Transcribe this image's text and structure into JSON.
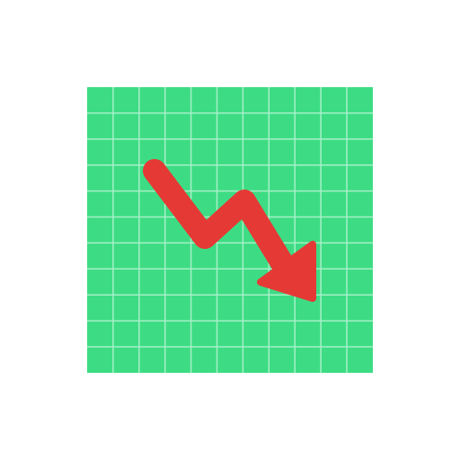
{
  "icon": {
    "name": "chart-decreasing-icon",
    "colors": {
      "background": "#ffffff",
      "panel": "#3ddc84",
      "grid": "#a6f0c6",
      "arrow": "#e53935"
    }
  }
}
